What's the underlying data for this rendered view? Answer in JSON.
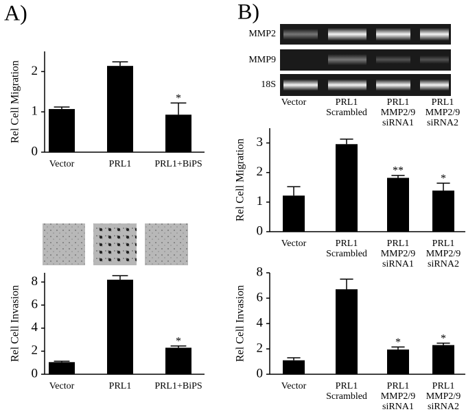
{
  "panel_labels": [
    "A)",
    "B)"
  ],
  "gel": {
    "row_labels": [
      "MMP2",
      "MMP9",
      "18S"
    ],
    "lane_labels": [
      [
        "Vector"
      ],
      [
        "PRL1",
        "Scrambled"
      ],
      [
        "PRL1",
        "MMP2/9",
        "siRNA1"
      ],
      [
        "PRL1",
        "MMP2/9",
        "siRNA2"
      ]
    ]
  },
  "chart_data": [
    {
      "type": "bar",
      "y_label": "Rel Cell Migration",
      "color": "#000000",
      "categories": [
        [
          "Vector"
        ],
        [
          "PRL1"
        ],
        [
          "PRL1+BiPS"
        ]
      ],
      "values": [
        1.07,
        2.14,
        0.93
      ],
      "errors": [
        0.05,
        0.1,
        0.29
      ],
      "annotations": [
        null,
        null,
        "*"
      ],
      "ylim": [
        0,
        2.5
      ],
      "yticks": [
        0,
        1,
        2
      ]
    },
    {
      "type": "bar",
      "y_label": "Rel Cell Invasion",
      "color": "#000000",
      "categories": [
        [
          "Vector"
        ],
        [
          "PRL1"
        ],
        [
          "PRL1+BiPS"
        ]
      ],
      "values": [
        1.05,
        8.2,
        2.3
      ],
      "errors": [
        0.08,
        0.35,
        0.15
      ],
      "annotations": [
        null,
        null,
        "*"
      ],
      "ylim": [
        0,
        8.8
      ],
      "yticks": [
        0,
        2,
        4,
        6,
        8
      ]
    },
    {
      "type": "bar",
      "y_label": "Rel Cell Migration",
      "color": "#000000",
      "categories": [
        [
          "Vector"
        ],
        [
          "PRL1",
          "Scrambled"
        ],
        [
          "PRL1",
          "MMP2/9",
          "siRNA1"
        ],
        [
          "PRL1",
          "MMP2/9",
          "siRNA2"
        ]
      ],
      "values": [
        1.22,
        2.96,
        1.82,
        1.39
      ],
      "errors": [
        0.3,
        0.17,
        0.08,
        0.25
      ],
      "annotations": [
        null,
        null,
        "**",
        "*"
      ],
      "ylim": [
        0,
        3.5
      ],
      "yticks": [
        0,
        1,
        2,
        3
      ]
    },
    {
      "type": "bar",
      "y_label": "Rel Cell Invasion",
      "color": "#000000",
      "categories": [
        [
          "Vector"
        ],
        [
          "PRL1",
          "Scrambled"
        ],
        [
          "PRL1",
          "MMP2/9",
          "siRNA1"
        ],
        [
          "PRL1",
          "MMP2/9",
          "siRNA2"
        ]
      ],
      "values": [
        1.1,
        6.7,
        1.95,
        2.3
      ],
      "errors": [
        0.2,
        0.8,
        0.2,
        0.15
      ],
      "annotations": [
        null,
        null,
        "*",
        "*"
      ],
      "ylim": [
        0,
        8
      ],
      "yticks": [
        0,
        2,
        4,
        6,
        8
      ]
    }
  ]
}
